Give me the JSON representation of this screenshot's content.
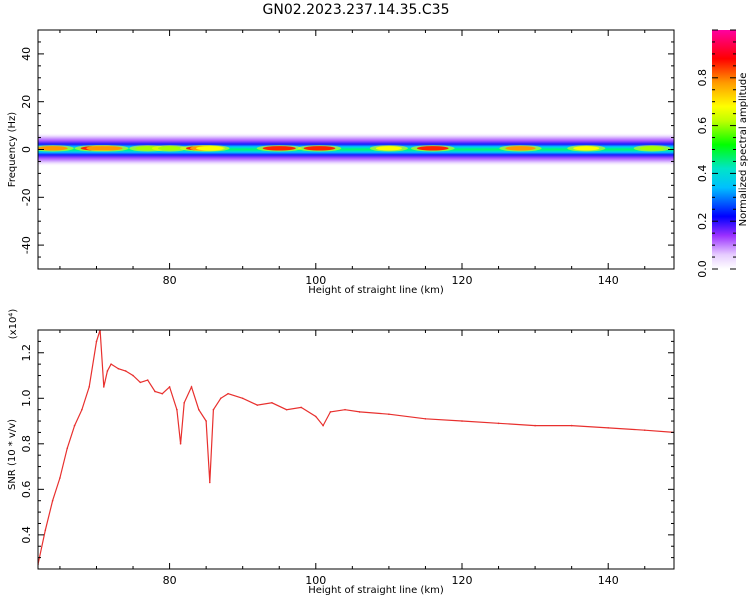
{
  "figure": {
    "title": "GN02.2023.237.14.35.C35"
  },
  "colors": {
    "line": "#e8302e",
    "axes": "#000000",
    "background": "#ffffff"
  },
  "chart_data": [
    {
      "type": "heatmap",
      "xlabel": "Height of straight line (km)",
      "ylabel": "Frequency (Hz)",
      "xlim": [
        62,
        149
      ],
      "ylim": [
        -50,
        50
      ],
      "x_ticks": [
        80,
        100,
        120,
        140
      ],
      "y_ticks": [
        -40,
        -20,
        0,
        20,
        40
      ],
      "colorbar": {
        "label": "Normalized spectral amplitude",
        "range": [
          0,
          1
        ],
        "ticks": [
          "0.0",
          "0.2",
          "0.4",
          "0.6",
          "0.8"
        ],
        "colormap": "rainbow"
      },
      "band_hotspots": [
        {
          "x": 64,
          "amp": 0.8
        },
        {
          "x": 70,
          "amp": 0.85
        },
        {
          "x": 71.5,
          "amp": 0.8
        },
        {
          "x": 77,
          "amp": 0.6
        },
        {
          "x": 80,
          "amp": 0.55
        },
        {
          "x": 84.5,
          "amp": 0.9
        },
        {
          "x": 85.5,
          "amp": 0.7
        },
        {
          "x": 95,
          "amp": 0.9
        },
        {
          "x": 100.5,
          "amp": 0.85
        },
        {
          "x": 110,
          "amp": 0.65
        },
        {
          "x": 116,
          "amp": 0.85
        },
        {
          "x": 128,
          "amp": 0.8
        },
        {
          "x": 137,
          "amp": 0.65
        },
        {
          "x": 146,
          "amp": 0.6
        }
      ]
    },
    {
      "type": "line",
      "xlabel": "Height of straight line (km)",
      "ylabel": "SNR (10 * v/v)",
      "y_multiplier": "(x10⁴)",
      "xlim": [
        62,
        149
      ],
      "ylim": [
        0.25,
        1.3
      ],
      "x_ticks": [
        80,
        100,
        120,
        140
      ],
      "y_ticks": [
        "0.4",
        "0.6",
        "0.8",
        "1.0",
        "1.2"
      ],
      "y_tick_values": [
        0.4,
        0.6,
        0.8,
        1.0,
        1.2
      ],
      "series": [
        {
          "x": [
            62,
            63,
            64,
            65,
            66,
            67,
            68,
            69,
            70,
            70.5,
            71,
            71.5,
            72,
            73,
            74,
            75,
            76,
            77,
            78,
            79,
            80,
            81,
            81.5,
            82,
            83,
            84,
            85,
            85.5,
            86,
            87,
            88,
            90,
            92,
            94,
            96,
            98,
            100,
            101,
            102,
            104,
            106,
            110,
            115,
            120,
            125,
            130,
            135,
            140,
            145,
            149
          ],
          "values": [
            0.27,
            0.42,
            0.55,
            0.65,
            0.78,
            0.88,
            0.95,
            1.05,
            1.25,
            1.3,
            1.05,
            1.12,
            1.15,
            1.13,
            1.12,
            1.1,
            1.07,
            1.08,
            1.03,
            1.02,
            1.05,
            0.95,
            0.8,
            0.98,
            1.05,
            0.95,
            0.9,
            0.63,
            0.95,
            1.0,
            1.02,
            1.0,
            0.97,
            0.98,
            0.95,
            0.96,
            0.92,
            0.88,
            0.94,
            0.95,
            0.94,
            0.93,
            0.91,
            0.9,
            0.89,
            0.88,
            0.88,
            0.87,
            0.86,
            0.85
          ]
        }
      ]
    }
  ]
}
